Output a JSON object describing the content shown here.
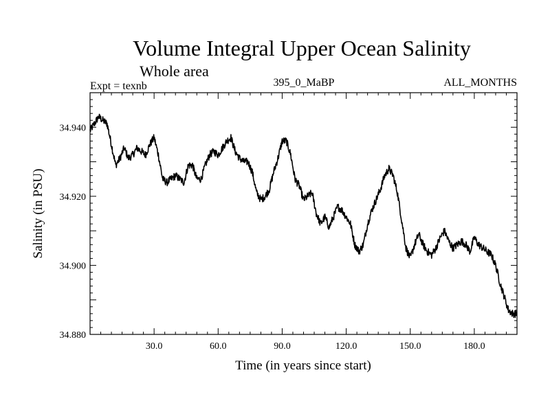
{
  "chart_data": {
    "type": "line",
    "title": "Volume Integral Upper Ocean Salinity",
    "subtitle": "Whole area",
    "expt_label": "Expt = texnb",
    "period_label": "395_0_MaBP",
    "months_label": "ALL_MONTHS",
    "xlabel": "Time (in years since start)",
    "ylabel": "Salinity (in PSU)",
    "xlim": [
      0,
      200
    ],
    "ylim": [
      34.88,
      34.95
    ],
    "x_ticks": [
      {
        "value": 30,
        "label": "30.0"
      },
      {
        "value": 60,
        "label": "60.0"
      },
      {
        "value": 90,
        "label": "90.0"
      },
      {
        "value": 120,
        "label": "120.0"
      },
      {
        "value": 150,
        "label": "150.0"
      },
      {
        "value": 180,
        "label": "180.0"
      }
    ],
    "y_ticks": [
      {
        "value": 34.88,
        "label": "34.880"
      },
      {
        "value": 34.9,
        "label": "34.900"
      },
      {
        "value": 34.92,
        "label": "34.920"
      },
      {
        "value": 34.94,
        "label": "34.940"
      }
    ],
    "series": [
      {
        "name": "salinity",
        "x": [
          0,
          2,
          4,
          6,
          8,
          10,
          12,
          14,
          16,
          18,
          20,
          22,
          24,
          26,
          28,
          30,
          32,
          34,
          36,
          38,
          40,
          42,
          44,
          46,
          48,
          50,
          52,
          54,
          56,
          58,
          60,
          62,
          64,
          66,
          68,
          70,
          72,
          74,
          76,
          78,
          80,
          82,
          84,
          86,
          88,
          90,
          92,
          94,
          96,
          98,
          100,
          102,
          104,
          106,
          108,
          110,
          112,
          114,
          116,
          118,
          120,
          122,
          124,
          126,
          128,
          130,
          132,
          134,
          136,
          138,
          140,
          142,
          144,
          146,
          148,
          150,
          152,
          154,
          156,
          158,
          160,
          162,
          164,
          166,
          168,
          170,
          172,
          174,
          176,
          178,
          180,
          182,
          184,
          186,
          188,
          190,
          192,
          194,
          196,
          198,
          200
        ],
        "values": [
          34.939,
          34.941,
          34.943,
          34.942,
          34.941,
          34.935,
          34.929,
          34.931,
          34.934,
          34.931,
          34.932,
          34.934,
          34.933,
          34.932,
          34.935,
          34.937,
          34.932,
          34.925,
          34.924,
          34.925,
          34.926,
          34.925,
          34.924,
          34.929,
          34.929,
          34.925,
          34.925,
          34.929,
          34.932,
          34.933,
          34.932,
          34.934,
          34.936,
          34.937,
          34.933,
          34.931,
          34.93,
          34.93,
          34.927,
          34.921,
          34.919,
          34.92,
          34.922,
          34.927,
          34.931,
          34.936,
          34.936,
          34.932,
          34.925,
          34.923,
          34.919,
          34.92,
          34.921,
          34.915,
          34.912,
          34.914,
          34.911,
          34.914,
          34.917,
          34.916,
          34.914,
          34.912,
          34.906,
          34.904,
          34.906,
          34.912,
          34.916,
          34.919,
          34.922,
          34.926,
          34.928,
          34.926,
          34.921,
          34.913,
          34.905,
          34.902,
          34.906,
          34.909,
          34.906,
          34.904,
          34.903,
          34.905,
          34.908,
          34.91,
          34.907,
          34.905,
          34.906,
          34.907,
          34.906,
          34.904,
          34.908,
          34.906,
          34.905,
          34.904,
          34.903,
          34.9,
          34.895,
          34.891,
          34.887,
          34.886,
          34.886
        ]
      }
    ]
  }
}
